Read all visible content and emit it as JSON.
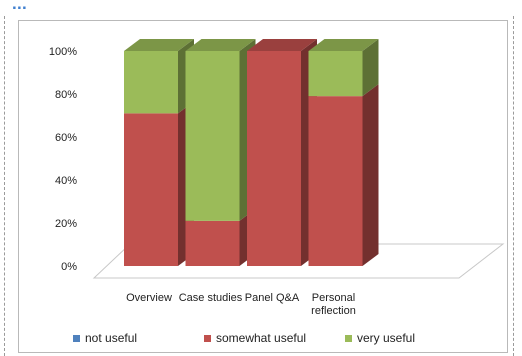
{
  "header": {
    "fragment": "..."
  },
  "chart_data": {
    "type": "bar",
    "stacked": true,
    "three_d": true,
    "categories": [
      [
        "Overview"
      ],
      [
        "Case studies"
      ],
      [
        "Panel Q&A"
      ],
      [
        "Personal",
        "reflection"
      ]
    ],
    "series": [
      {
        "name": "not useful",
        "values": [
          0,
          0,
          0,
          0
        ],
        "color": "#4f81bd"
      },
      {
        "name": "somewhat useful",
        "values": [
          71,
          21,
          100,
          79
        ],
        "color": "#c0504d"
      },
      {
        "name": "very useful",
        "values": [
          29,
          79,
          0,
          21
        ],
        "color": "#9bbb59"
      }
    ],
    "yticks": [
      "0%",
      "20%",
      "40%",
      "60%",
      "80%",
      "100%"
    ],
    "ylim": [
      0,
      100
    ],
    "grid": false,
    "legend_position": "bottom"
  }
}
